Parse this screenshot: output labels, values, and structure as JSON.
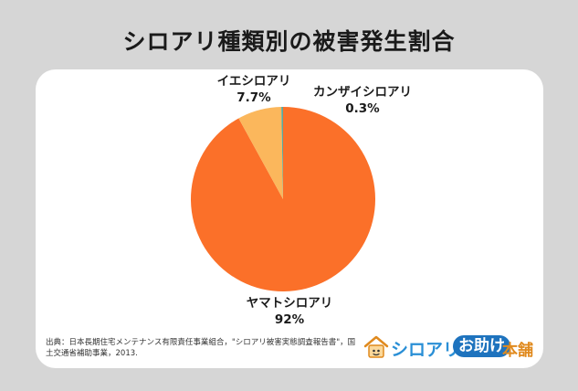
{
  "title": "シロアリ種類別の被害発生割合",
  "chart_data": {
    "type": "pie",
    "title": "シロアリ種類別の被害発生割合",
    "slices": [
      {
        "label": "ヤマトシロアリ",
        "value": 92,
        "value_label": "92%",
        "color": "#fb7029"
      },
      {
        "label": "イエシロアリ",
        "value": 7.7,
        "value_label": "7.7%",
        "color": "#fbb75c"
      },
      {
        "label": "カンザイシロアリ",
        "value": 0.3,
        "value_label": "0.3%",
        "color": "#5aa9a0"
      }
    ],
    "legend": "none"
  },
  "source_note": "出典：日本長期住宅メンテナンス有限責任事業組合，\"シロアリ被害実態調査報告書\"，国土交通省補助事業，2013.",
  "brand": {
    "part1": "シロアリ",
    "part2": "お助け",
    "part3": "本舗",
    "colors": {
      "blue": "#2a8fd6",
      "navy": "#1e73be",
      "orange": "#e08a1e"
    }
  },
  "colors": {
    "background": "#d6d6d6",
    "card": "#ffffff"
  }
}
